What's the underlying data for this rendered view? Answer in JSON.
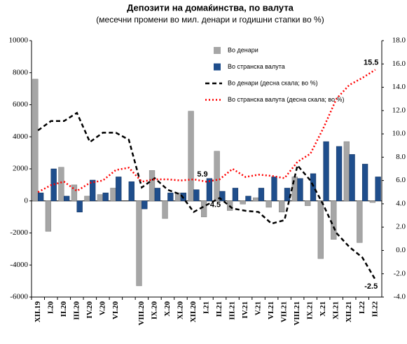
{
  "chart_data": {
    "type": "bar_line",
    "title": "Депозити на домаќинства, по валута",
    "subtitle": "(месечни промени во мил. денари и годишни стапки во %)",
    "categories": [
      "XII.19",
      "I.20",
      "II.20",
      "III.20",
      "IV.20",
      "V.20",
      "VI.20",
      null,
      "VIII.20",
      "IX.20",
      "X.20",
      "XI.20",
      "XII.20",
      "I.21",
      "II.21",
      "III.21",
      "IV.21",
      "V.21",
      "VI.21",
      "VII.21",
      "VIII.21",
      "IX.21",
      "X.21",
      "XI.21",
      "XII.21",
      "I.22",
      "II.22"
    ],
    "series": [
      {
        "name": "Во денари",
        "color": "#a6a6a6",
        "kind": "bar",
        "values": [
          7600,
          -1900,
          2100,
          1000,
          300,
          400,
          800,
          0,
          -5300,
          1900,
          -1100,
          500,
          5600,
          -1000,
          3100,
          -600,
          -200,
          200,
          -400,
          -700,
          1500,
          -300,
          -3600,
          -2400,
          3700,
          -2600,
          -100
        ]
      },
      {
        "name": "Во странска валута",
        "color": "#1f4e8c",
        "kind": "bar",
        "values": [
          500,
          2000,
          300,
          -700,
          1300,
          500,
          1500,
          1200,
          -500,
          800,
          500,
          500,
          700,
          1400,
          600,
          800,
          300,
          800,
          1500,
          800,
          1400,
          1700,
          3700,
          3400,
          2900,
          2300,
          1500
        ]
      },
      {
        "name": "Во денари (десна скала; во %)",
        "color": "#000000",
        "kind": "line",
        "dash": "dashed",
        "axis": "y2",
        "values": [
          10.3,
          11.1,
          11.1,
          11.8,
          9.3,
          10.1,
          10.1,
          9.5,
          5.4,
          6.2,
          5.2,
          4.8,
          3.3,
          3.9,
          4.5,
          3.6,
          3.4,
          3.3,
          2.3,
          2.6,
          7.3,
          6.0,
          3.9,
          1.5,
          0.3,
          -0.6,
          -2.5
        ],
        "value_labels": [
          null,
          null,
          null,
          null,
          null,
          null,
          null,
          null,
          null,
          null,
          null,
          null,
          null,
          null,
          "4.5",
          null,
          null,
          null,
          null,
          null,
          null,
          null,
          null,
          null,
          null,
          null,
          "-2.5"
        ]
      },
      {
        "name": "Во странска валута (десна скала; во %)",
        "color": "#ff0000",
        "kind": "line",
        "dash": "dotted",
        "axis": "y2",
        "values": [
          5.0,
          5.6,
          5.9,
          5.1,
          5.8,
          6.0,
          6.9,
          7.1,
          5.9,
          6.1,
          6.1,
          6.0,
          6.1,
          5.9,
          6.1,
          7.0,
          6.3,
          6.5,
          6.4,
          6.2,
          7.6,
          8.3,
          10.5,
          13.0,
          14.2,
          14.8,
          15.5
        ],
        "value_labels": [
          null,
          null,
          null,
          null,
          null,
          null,
          null,
          null,
          null,
          null,
          null,
          null,
          null,
          "5.9",
          null,
          null,
          null,
          null,
          null,
          null,
          null,
          null,
          null,
          null,
          null,
          null,
          "15.5"
        ]
      }
    ],
    "ylim": [
      -6000,
      10000
    ],
    "yticks": [
      -6000,
      -4000,
      -2000,
      0,
      2000,
      4000,
      6000,
      8000,
      10000
    ],
    "y2lim": [
      -4,
      18
    ],
    "y2ticks": [
      {
        "value": -4,
        "label": "-4.0"
      },
      {
        "value": -2,
        "label": "-2.0"
      },
      {
        "value": 0,
        "label": "0.0"
      },
      {
        "value": 2,
        "label": "2.0"
      },
      {
        "value": 4,
        "label": "4.0"
      },
      {
        "value": 6,
        "label": "6.0"
      },
      {
        "value": 8,
        "label": "8.0"
      },
      {
        "value": 10,
        "label": "10.0"
      },
      {
        "value": 12,
        "label": "12.0"
      },
      {
        "value": 14,
        "label": "14.0"
      },
      {
        "value": 16,
        "label": "16.0"
      },
      {
        "value": 18,
        "label": "18.0"
      }
    ]
  }
}
